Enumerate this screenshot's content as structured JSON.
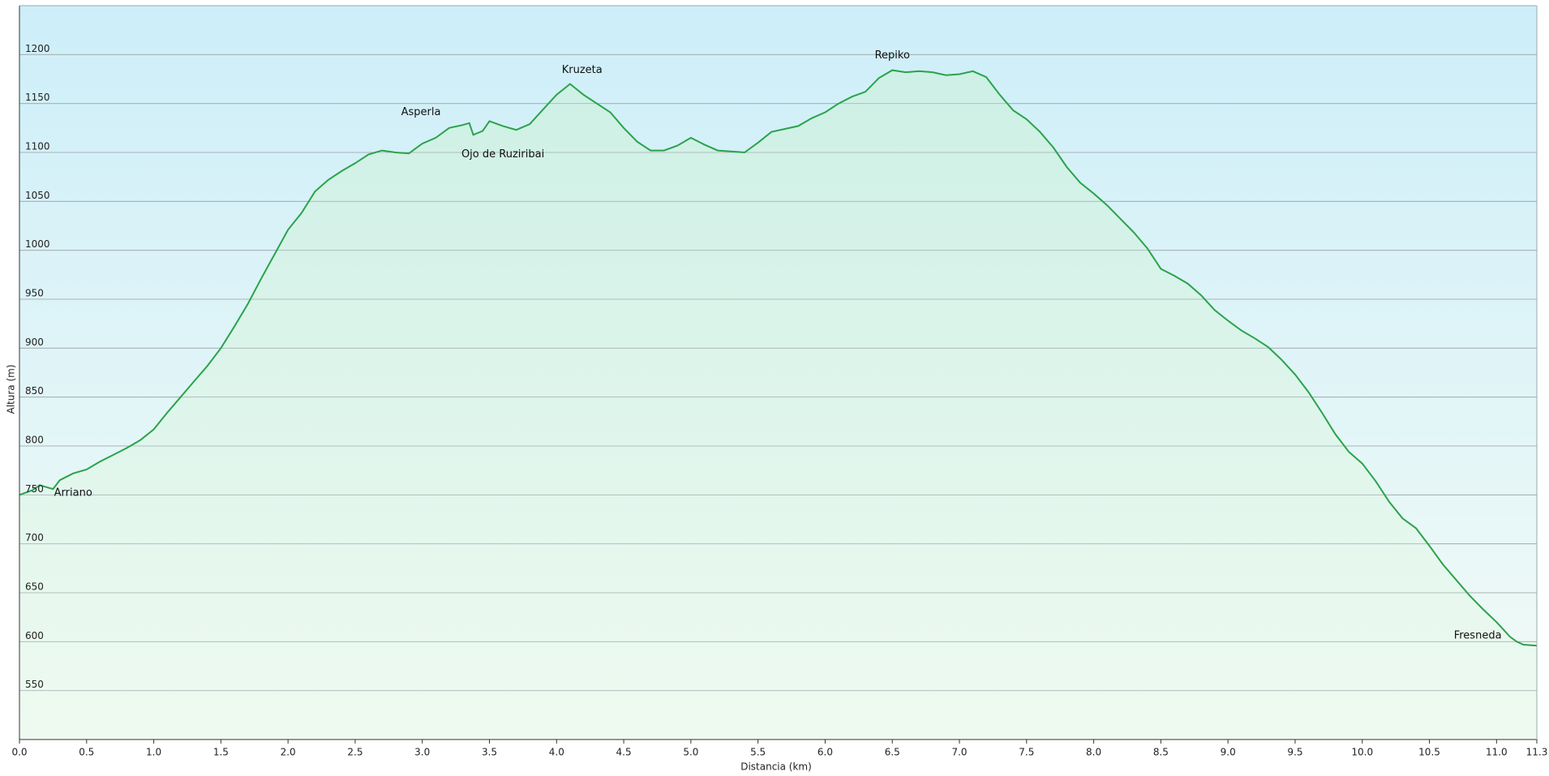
{
  "chart_data": {
    "type": "area",
    "x_label": "Distancia  (km)",
    "y_label": "Altura (m)",
    "color": "#2aa34a",
    "grid": true,
    "xlim": [
      0,
      11.3
    ],
    "ylim": [
      500,
      1250
    ],
    "xticks": [
      {
        "value": 0,
        "label": "0.0"
      },
      0.5,
      {
        "value": 1,
        "label": "1.0"
      },
      1.5,
      {
        "value": 2,
        "label": "2.0"
      },
      2.5,
      {
        "value": 3,
        "label": "3.0"
      },
      3.5,
      {
        "value": 4,
        "label": "4.0"
      },
      4.5,
      {
        "value": 5,
        "label": "5.0"
      },
      5.5,
      {
        "value": 6,
        "label": "6.0"
      },
      6.5,
      {
        "value": 7,
        "label": "7.0"
      },
      7.5,
      {
        "value": 8,
        "label": "8.0"
      },
      8.5,
      {
        "value": 9,
        "label": "9.0"
      },
      9.5,
      {
        "value": 10,
        "label": "10.0"
      },
      10.5,
      {
        "value": 11,
        "label": "11.0"
      },
      11.3
    ],
    "yticks": [
      550,
      600,
      650,
      700,
      750,
      800,
      850,
      900,
      950,
      1000,
      1050,
      1100,
      1150,
      1200
    ],
    "x": [
      0,
      0.1,
      0.15,
      0.25,
      0.3,
      0.4,
      0.5,
      0.6,
      0.7,
      0.8,
      0.9,
      1.0,
      1.1,
      1.2,
      1.3,
      1.4,
      1.5,
      1.6,
      1.7,
      1.8,
      1.9,
      2.0,
      2.1,
      2.2,
      2.3,
      2.4,
      2.5,
      2.6,
      2.7,
      2.8,
      2.9,
      3.0,
      3.1,
      3.2,
      3.3,
      3.35,
      3.38,
      3.45,
      3.5,
      3.6,
      3.7,
      3.8,
      3.9,
      4.0,
      4.1,
      4.2,
      4.3,
      4.4,
      4.5,
      4.6,
      4.7,
      4.8,
      4.9,
      5.0,
      5.1,
      5.2,
      5.3,
      5.4,
      5.5,
      5.6,
      5.7,
      5.8,
      5.9,
      6.0,
      6.1,
      6.2,
      6.3,
      6.4,
      6.5,
      6.6,
      6.7,
      6.8,
      6.9,
      7.0,
      7.1,
      7.2,
      7.3,
      7.4,
      7.5,
      7.6,
      7.7,
      7.8,
      7.9,
      8.0,
      8.1,
      8.2,
      8.3,
      8.4,
      8.5,
      8.6,
      8.7,
      8.8,
      8.9,
      9.0,
      9.1,
      9.2,
      9.3,
      9.4,
      9.5,
      9.6,
      9.7,
      9.8,
      9.9,
      10.0,
      10.1,
      10.2,
      10.3,
      10.4,
      10.5,
      10.6,
      10.7,
      10.8,
      10.9,
      11.0,
      11.1,
      11.15,
      11.2,
      11.3
    ],
    "values": [
      750,
      755,
      760,
      756,
      765,
      772,
      776,
      784,
      791,
      798,
      806,
      817,
      834,
      850,
      866,
      882,
      900,
      922,
      945,
      971,
      996,
      1021,
      1038,
      1060,
      1072,
      1081,
      1089,
      1098,
      1102,
      1100,
      1099,
      1109,
      1115,
      1125,
      1128,
      1130,
      1118,
      1122,
      1132,
      1127,
      1123,
      1129,
      1144,
      1159,
      1170,
      1159,
      1150,
      1141,
      1125,
      1111,
      1102,
      1102,
      1107,
      1115,
      1108,
      1102,
      1101,
      1100,
      1110,
      1121,
      1124,
      1127,
      1135,
      1141,
      1150,
      1157,
      1162,
      1176,
      1184,
      1182,
      1183,
      1182,
      1179,
      1180,
      1183,
      1177,
      1159,
      1143,
      1134,
      1121,
      1105,
      1085,
      1069,
      1058,
      1046,
      1032,
      1018,
      1002,
      981,
      974,
      966,
      954,
      939,
      928,
      918,
      910,
      901,
      888,
      873,
      855,
      834,
      812,
      794,
      782,
      764,
      743,
      726,
      716,
      698,
      679,
      663,
      647,
      633,
      620,
      605,
      600,
      597,
      596
    ],
    "annotations": [
      {
        "text": "Arriano",
        "x": 0.4,
        "y": 752
      },
      {
        "text": "Asperla",
        "x": 2.99,
        "y": 1141
      },
      {
        "text": "Ojo de Ruziribai",
        "x": 3.6,
        "y": 1098
      },
      {
        "text": "Kruzeta",
        "x": 4.19,
        "y": 1184
      },
      {
        "text": "Repiko",
        "x": 6.5,
        "y": 1199
      },
      {
        "text": "Fresneda",
        "x": 10.86,
        "y": 606
      }
    ]
  }
}
